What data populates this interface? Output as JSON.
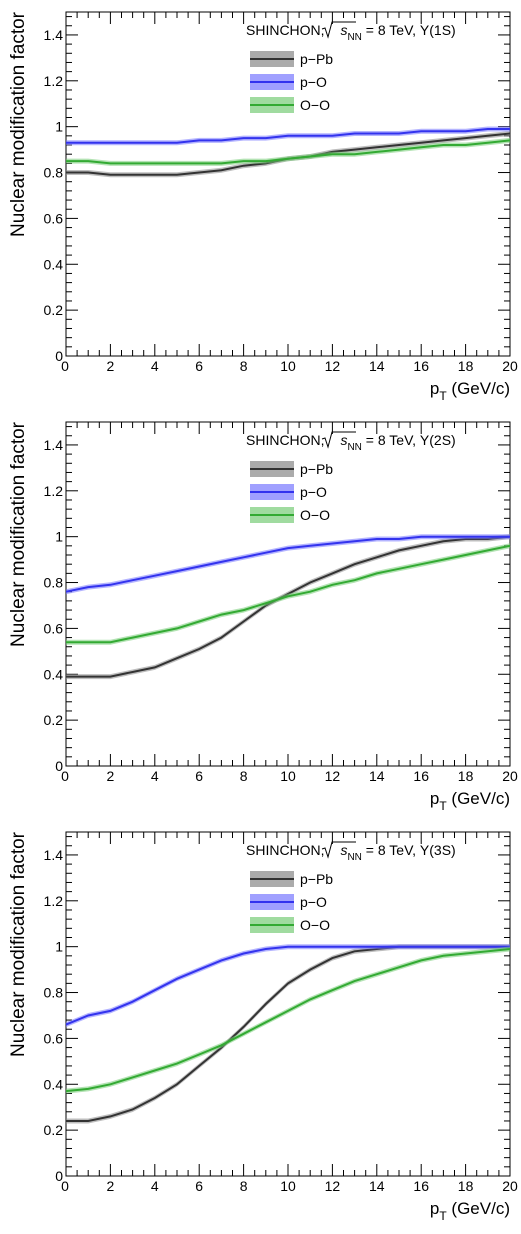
{
  "chart_data": [
    {
      "type": "line",
      "panel_label": "Υ(1S)",
      "header_prefix": "SHINCHON, ",
      "header_sqrt": "s",
      "header_sub": "NN",
      "header_suffix": " = 8 TeV, ",
      "xlabel_main": "p",
      "xlabel_sub": "T",
      "xlabel_unit": " (GeV/c)",
      "ylabel": "Nuclear modification factor",
      "xlim": [
        0,
        20
      ],
      "ylim": [
        0,
        1.5
      ],
      "x_ticks": [
        "0",
        "2",
        "4",
        "6",
        "8",
        "10",
        "12",
        "14",
        "16",
        "18",
        "20"
      ],
      "y_ticks": [
        "0",
        "0.2",
        "0.4",
        "0.6",
        "0.8",
        "1",
        "1.2",
        "1.4"
      ],
      "x": [
        0,
        1,
        2,
        3,
        4,
        5,
        6,
        7,
        8,
        9,
        10,
        11,
        12,
        13,
        14,
        15,
        16,
        17,
        18,
        19,
        20
      ],
      "series": [
        {
          "name": "p−Pb",
          "color": "#333333",
          "band": "#888888",
          "values": [
            0.8,
            0.8,
            0.79,
            0.79,
            0.79,
            0.79,
            0.8,
            0.81,
            0.83,
            0.84,
            0.86,
            0.87,
            0.89,
            0.9,
            0.91,
            0.92,
            0.93,
            0.94,
            0.95,
            0.96,
            0.97
          ]
        },
        {
          "name": "p−O",
          "color": "#3333ee",
          "band": "#7777ff",
          "values": [
            0.93,
            0.93,
            0.93,
            0.93,
            0.93,
            0.93,
            0.94,
            0.94,
            0.95,
            0.95,
            0.96,
            0.96,
            0.96,
            0.97,
            0.97,
            0.97,
            0.98,
            0.98,
            0.98,
            0.99,
            0.99
          ]
        },
        {
          "name": "O−O",
          "color": "#33aa33",
          "band": "#77cc77",
          "values": [
            0.85,
            0.85,
            0.84,
            0.84,
            0.84,
            0.84,
            0.84,
            0.84,
            0.85,
            0.85,
            0.86,
            0.87,
            0.88,
            0.88,
            0.89,
            0.9,
            0.91,
            0.92,
            0.92,
            0.93,
            0.94
          ]
        }
      ]
    },
    {
      "type": "line",
      "panel_label": "Υ(2S)",
      "header_prefix": "SHINCHON, ",
      "header_sqrt": "s",
      "header_sub": "NN",
      "header_suffix": " = 8 TeV, ",
      "xlabel_main": "p",
      "xlabel_sub": "T",
      "xlabel_unit": " (GeV/c)",
      "ylabel": "Nuclear modification factor",
      "xlim": [
        0,
        20
      ],
      "ylim": [
        0,
        1.5
      ],
      "x_ticks": [
        "0",
        "2",
        "4",
        "6",
        "8",
        "10",
        "12",
        "14",
        "16",
        "18",
        "20"
      ],
      "y_ticks": [
        "0",
        "0.2",
        "0.4",
        "0.6",
        "0.8",
        "1",
        "1.2",
        "1.4"
      ],
      "x": [
        0,
        1,
        2,
        3,
        4,
        5,
        6,
        7,
        8,
        9,
        10,
        11,
        12,
        13,
        14,
        15,
        16,
        17,
        18,
        19,
        20
      ],
      "series": [
        {
          "name": "p−Pb",
          "color": "#333333",
          "band": "#888888",
          "values": [
            0.39,
            0.39,
            0.39,
            0.41,
            0.43,
            0.47,
            0.51,
            0.56,
            0.63,
            0.7,
            0.75,
            0.8,
            0.84,
            0.88,
            0.91,
            0.94,
            0.96,
            0.98,
            0.99,
            0.99,
            1.0
          ]
        },
        {
          "name": "p−O",
          "color": "#3333ee",
          "band": "#7777ff",
          "values": [
            0.76,
            0.78,
            0.79,
            0.81,
            0.83,
            0.85,
            0.87,
            0.89,
            0.91,
            0.93,
            0.95,
            0.96,
            0.97,
            0.98,
            0.99,
            0.99,
            1.0,
            1.0,
            1.0,
            1.0,
            1.0
          ]
        },
        {
          "name": "O−O",
          "color": "#33aa33",
          "band": "#77cc77",
          "values": [
            0.54,
            0.54,
            0.54,
            0.56,
            0.58,
            0.6,
            0.63,
            0.66,
            0.68,
            0.71,
            0.74,
            0.76,
            0.79,
            0.81,
            0.84,
            0.86,
            0.88,
            0.9,
            0.92,
            0.94,
            0.96
          ]
        }
      ]
    },
    {
      "type": "line",
      "panel_label": "Υ(3S)",
      "header_prefix": "SHINCHON, ",
      "header_sqrt": "s",
      "header_sub": "NN",
      "header_suffix": " = 8 TeV, ",
      "xlabel_main": "p",
      "xlabel_sub": "T",
      "xlabel_unit": " (GeV/c)",
      "ylabel": "Nuclear modification factor",
      "xlim": [
        0,
        20
      ],
      "ylim": [
        0,
        1.5
      ],
      "x_ticks": [
        "0",
        "2",
        "4",
        "6",
        "8",
        "10",
        "12",
        "14",
        "16",
        "18",
        "20"
      ],
      "y_ticks": [
        "0",
        "0.2",
        "0.4",
        "0.6",
        "0.8",
        "1",
        "1.2",
        "1.4"
      ],
      "x": [
        0,
        1,
        2,
        3,
        4,
        5,
        6,
        7,
        8,
        9,
        10,
        11,
        12,
        13,
        14,
        15,
        16,
        17,
        18,
        19,
        20
      ],
      "series": [
        {
          "name": "p−Pb",
          "color": "#333333",
          "band": "#888888",
          "values": [
            0.24,
            0.24,
            0.26,
            0.29,
            0.34,
            0.4,
            0.48,
            0.56,
            0.65,
            0.75,
            0.84,
            0.9,
            0.95,
            0.98,
            0.99,
            1.0,
            1.0,
            1.0,
            1.0,
            1.0,
            1.0
          ]
        },
        {
          "name": "p−O",
          "color": "#3333ee",
          "band": "#7777ff",
          "values": [
            0.66,
            0.7,
            0.72,
            0.76,
            0.81,
            0.86,
            0.9,
            0.94,
            0.97,
            0.99,
            1.0,
            1.0,
            1.0,
            1.0,
            1.0,
            1.0,
            1.0,
            1.0,
            1.0,
            1.0,
            1.0
          ]
        },
        {
          "name": "O−O",
          "color": "#33aa33",
          "band": "#77cc77",
          "values": [
            0.37,
            0.38,
            0.4,
            0.43,
            0.46,
            0.49,
            0.53,
            0.57,
            0.62,
            0.67,
            0.72,
            0.77,
            0.81,
            0.85,
            0.88,
            0.91,
            0.94,
            0.96,
            0.97,
            0.98,
            0.99
          ]
        }
      ]
    }
  ]
}
